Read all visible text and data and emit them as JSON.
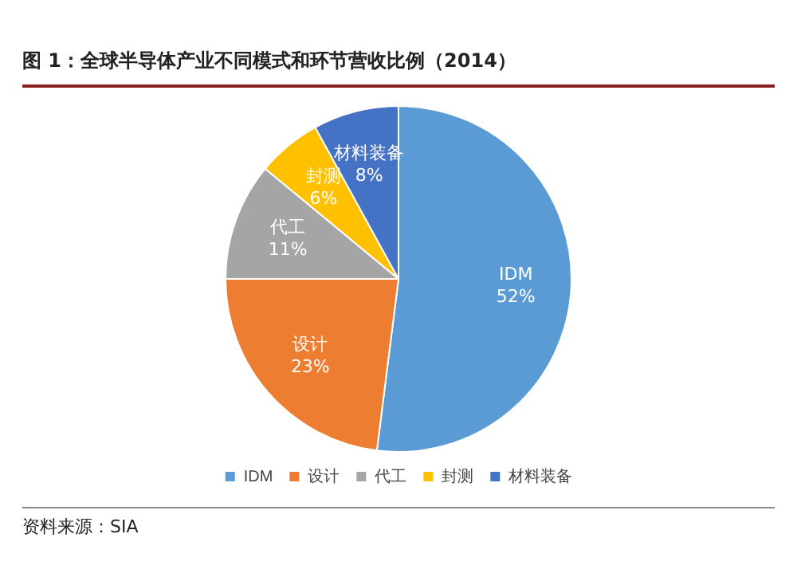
{
  "chart_data": {
    "type": "pie",
    "title": "图 1：全球半导体产业不同模式和环节营收比例（2014）",
    "categories": [
      "IDM",
      "设计",
      "代工",
      "封测",
      "材料装备"
    ],
    "values": [
      52,
      23,
      11,
      6,
      8
    ],
    "colors": [
      "#5b9bd5",
      "#ed7d31",
      "#a5a5a5",
      "#ffc000",
      "#4472c4"
    ],
    "value_labels": [
      "52%",
      "23%",
      "11%",
      "6%",
      "8%"
    ],
    "legend": "bottom",
    "annotations": [
      "资料来源：SIA"
    ]
  }
}
